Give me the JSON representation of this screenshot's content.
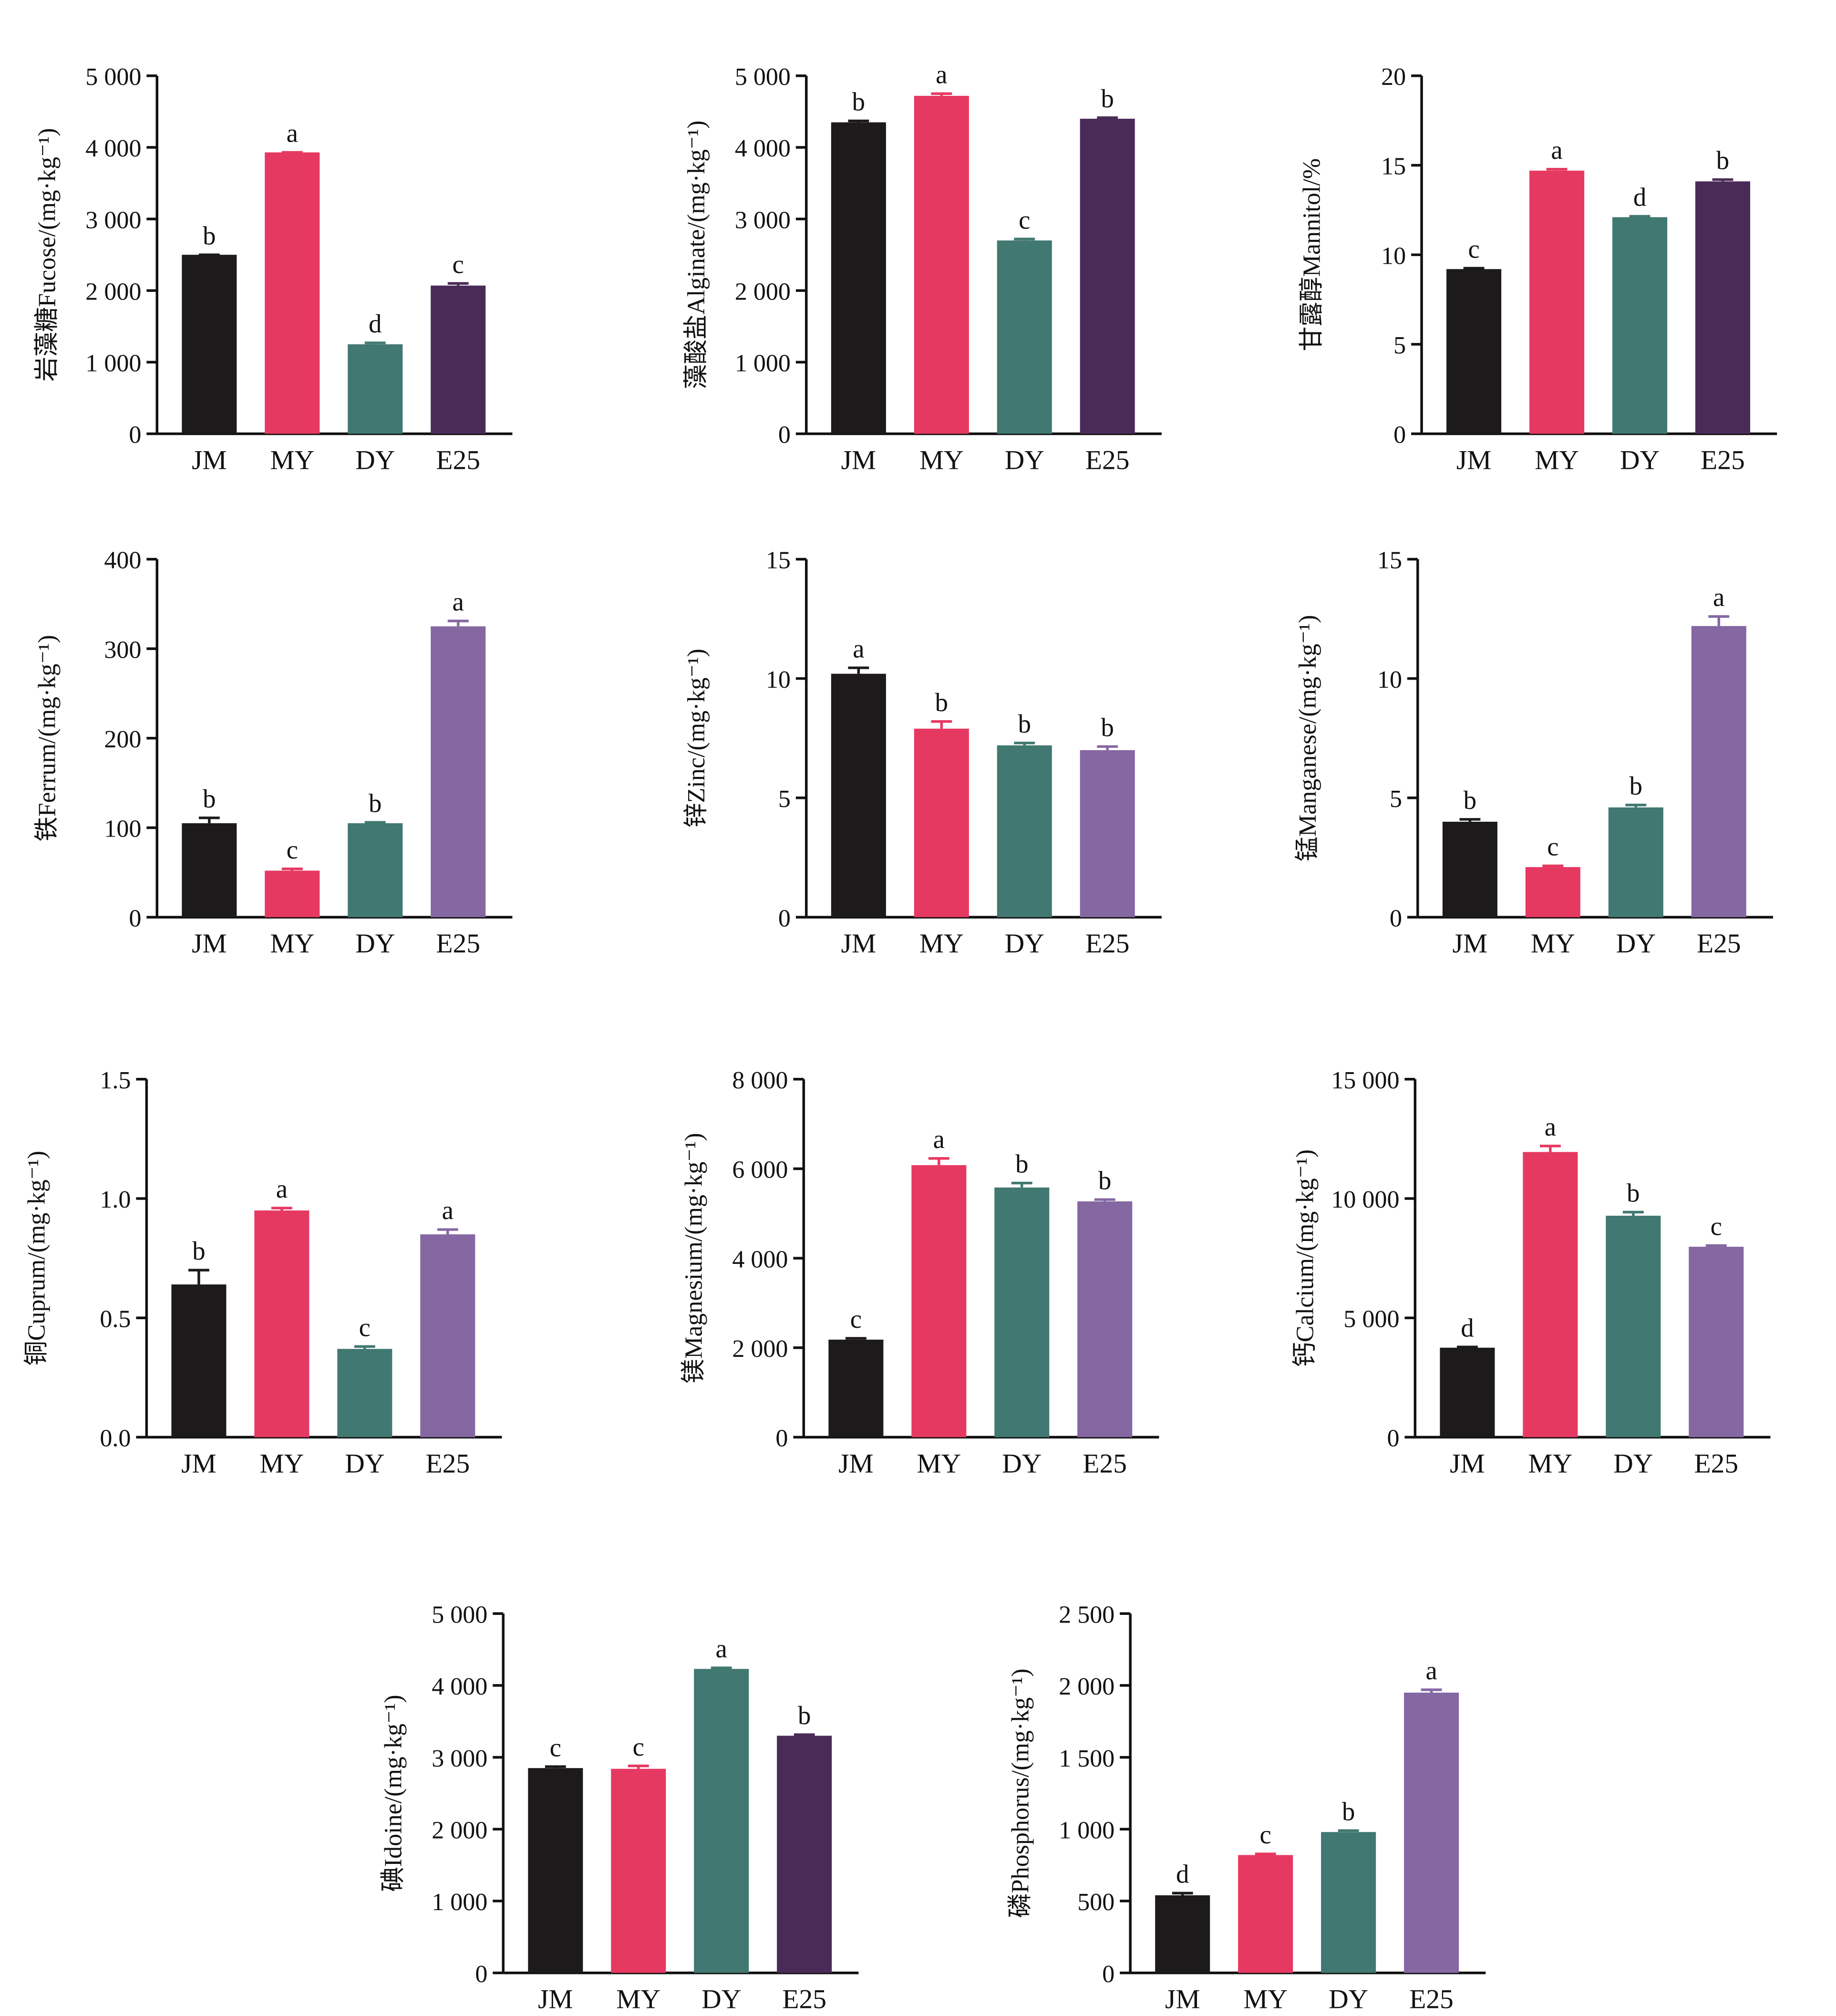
{
  "colors": {
    "JM": "#1c1a1b",
    "MY": "#e63962",
    "DY": "#417871",
    "E25_dark": "#4a2b58",
    "E25_light": "#8567a2"
  },
  "chart_data": [
    {
      "type": "bar",
      "ylabel": "岩藻糖Fucose/(mg·kg⁻¹)",
      "ylim": [
        0,
        5000
      ],
      "yticks": [
        0,
        1000,
        2000,
        3000,
        4000,
        5000
      ],
      "ytick_labels": [
        "0",
        "1 000",
        "2 000",
        "3 000",
        "4 000",
        "5 000"
      ],
      "categories": [
        "JM",
        "MY",
        "DY",
        "E25"
      ],
      "values": [
        2500,
        3930,
        1250,
        2070
      ],
      "errors": [
        0,
        0,
        20,
        30
      ],
      "letters": [
        "b",
        "a",
        "d",
        "c"
      ],
      "e25": "dark"
    },
    {
      "type": "bar",
      "ylabel": "藻酸盐Alginate/(mg·kg⁻¹)",
      "ylim": [
        0,
        5000
      ],
      "yticks": [
        0,
        1000,
        2000,
        3000,
        4000,
        5000
      ],
      "ytick_labels": [
        "0",
        "1 000",
        "2 000",
        "3 000",
        "4 000",
        "5 000"
      ],
      "categories": [
        "JM",
        "MY",
        "DY",
        "E25"
      ],
      "values": [
        4350,
        4720,
        2700,
        4400
      ],
      "errors": [
        20,
        30,
        20,
        15
      ],
      "letters": [
        "b",
        "a",
        "c",
        "b"
      ],
      "e25": "dark"
    },
    {
      "type": "bar",
      "ylabel": "甘露醇Mannitol/%",
      "ylim": [
        0,
        20
      ],
      "yticks": [
        0,
        5,
        10,
        15,
        20
      ],
      "ytick_labels": [
        "0",
        "5",
        "10",
        "15",
        "20"
      ],
      "categories": [
        "JM",
        "MY",
        "DY",
        "E25"
      ],
      "values": [
        9.2,
        14.7,
        12.1,
        14.1
      ],
      "errors": [
        0.05,
        0.08,
        0.05,
        0.1
      ],
      "letters": [
        "c",
        "a",
        "d",
        "b"
      ],
      "e25": "dark"
    },
    {
      "type": "bar",
      "ylabel": "铁Ferrum/(mg·kg⁻¹)",
      "ylim": [
        0,
        400
      ],
      "yticks": [
        0,
        100,
        200,
        300,
        400
      ],
      "ytick_labels": [
        "0",
        "100",
        "200",
        "300",
        "400"
      ],
      "categories": [
        "JM",
        "MY",
        "DY",
        "E25"
      ],
      "values": [
        105,
        52,
        105,
        325
      ],
      "errors": [
        6,
        2,
        1,
        6
      ],
      "letters": [
        "b",
        "c",
        "b",
        "a"
      ],
      "e25": "light"
    },
    {
      "type": "bar",
      "ylabel": "锌Zinc/(mg·kg⁻¹)",
      "ylim": [
        0,
        15
      ],
      "yticks": [
        0,
        5,
        10,
        15
      ],
      "ytick_labels": [
        "0",
        "5",
        "10",
        "15"
      ],
      "categories": [
        "JM",
        "MY",
        "DY",
        "E25"
      ],
      "values": [
        10.2,
        7.9,
        7.2,
        7.0
      ],
      "errors": [
        0.25,
        0.3,
        0.1,
        0.15
      ],
      "letters": [
        "a",
        "b",
        "b",
        "b"
      ],
      "e25": "light"
    },
    {
      "type": "bar",
      "ylabel": "锰Manganese/(mg·kg⁻¹)",
      "ylim": [
        0,
        15
      ],
      "yticks": [
        0,
        5,
        10,
        15
      ],
      "ytick_labels": [
        "0",
        "5",
        "10",
        "15"
      ],
      "categories": [
        "JM",
        "MY",
        "DY",
        "E25"
      ],
      "values": [
        4.0,
        2.1,
        4.6,
        12.2
      ],
      "errors": [
        0.1,
        0.05,
        0.1,
        0.4
      ],
      "letters": [
        "b",
        "c",
        "b",
        "a"
      ],
      "e25": "light"
    },
    {
      "type": "bar",
      "ylabel": "铜Cuprum/(mg·kg⁻¹)",
      "ylim": [
        0,
        1.5
      ],
      "yticks": [
        0,
        0.5,
        1.0,
        1.5
      ],
      "ytick_labels": [
        "0.0",
        "0.5",
        "1.0",
        "1.5"
      ],
      "categories": [
        "JM",
        "MY",
        "DY",
        "E25"
      ],
      "values": [
        0.64,
        0.95,
        0.37,
        0.85
      ],
      "errors": [
        0.06,
        0.01,
        0.01,
        0.02
      ],
      "letters": [
        "b",
        "a",
        "c",
        "a"
      ],
      "e25": "light"
    },
    {
      "type": "bar",
      "ylabel": "镁Magnesium/(mg·kg⁻¹)",
      "ylim": [
        0,
        8000
      ],
      "yticks": [
        0,
        2000,
        4000,
        6000,
        8000
      ],
      "ytick_labels": [
        "0",
        "2 000",
        "4 000",
        "6 000",
        "8 000"
      ],
      "categories": [
        "JM",
        "MY",
        "DY",
        "E25"
      ],
      "values": [
        2180,
        6080,
        5580,
        5270
      ],
      "errors": [
        30,
        150,
        100,
        40
      ],
      "letters": [
        "c",
        "a",
        "b",
        "b"
      ],
      "e25": "light"
    },
    {
      "type": "bar",
      "ylabel": "钙Calcium/(mg·kg⁻¹)",
      "ylim": [
        0,
        15000
      ],
      "yticks": [
        0,
        5000,
        10000,
        15000
      ],
      "ytick_labels": [
        "0",
        "5 000",
        "10 000",
        "15 000"
      ],
      "categories": [
        "JM",
        "MY",
        "DY",
        "E25"
      ],
      "values": [
        3750,
        11950,
        9280,
        7980
      ],
      "errors": [
        30,
        250,
        150,
        50
      ],
      "letters": [
        "d",
        "a",
        "b",
        "c"
      ],
      "e25": "light"
    },
    {
      "type": "bar",
      "ylabel": "碘Idoine/(mg·kg⁻¹)",
      "ylim": [
        0,
        5000
      ],
      "yticks": [
        0,
        1000,
        2000,
        3000,
        4000,
        5000
      ],
      "ytick_labels": [
        "0",
        "1 000",
        "2 000",
        "3 000",
        "4 000",
        "5 000"
      ],
      "categories": [
        "JM",
        "MY",
        "DY",
        "E25"
      ],
      "values": [
        2850,
        2840,
        4230,
        3300
      ],
      "errors": [
        20,
        40,
        15,
        15
      ],
      "letters": [
        "c",
        "c",
        "a",
        "b"
      ],
      "e25": "dark"
    },
    {
      "type": "bar",
      "ylabel": "磷Phosphorus/(mg·kg⁻¹)",
      "ylim": [
        0,
        2500
      ],
      "yticks": [
        0,
        500,
        1000,
        1500,
        2000,
        2500
      ],
      "ytick_labels": [
        "0",
        "500",
        "1 000",
        "1 500",
        "2 000",
        "2 500"
      ],
      "categories": [
        "JM",
        "MY",
        "DY",
        "E25"
      ],
      "values": [
        540,
        820,
        980,
        1950
      ],
      "errors": [
        15,
        8,
        10,
        20
      ],
      "letters": [
        "d",
        "c",
        "b",
        "a"
      ],
      "e25": "light"
    }
  ]
}
